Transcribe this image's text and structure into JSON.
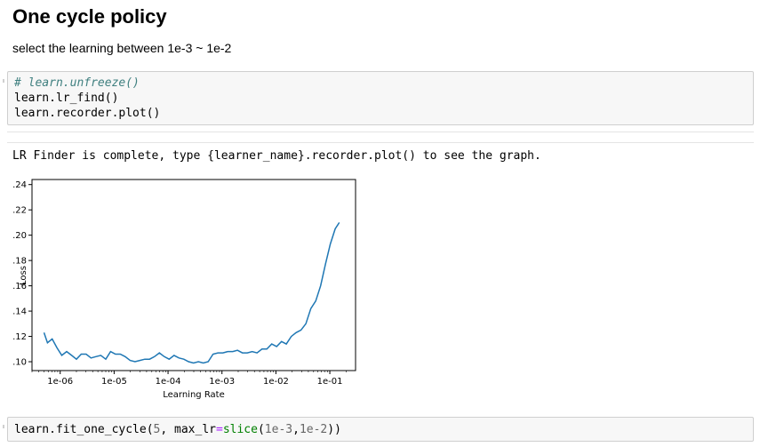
{
  "markdown": {
    "heading": "One cycle policy",
    "paragraph": "select the learning between 1e-3 ~ 1e-2"
  },
  "cell1": {
    "lines": [
      {
        "text": "# learn.unfreeze()",
        "kind": "comment"
      },
      {
        "text": "learn.lr_find()",
        "kind": "code"
      },
      {
        "text": "learn.recorder.plot()",
        "kind": "code"
      }
    ]
  },
  "output": {
    "text": "LR Finder is complete, type {learner_name}.recorder.plot() to see the graph."
  },
  "cell2": {
    "prefix": "learn.fit_one_cycle(",
    "arg1": "5",
    "sep": ", ",
    "kwarg": "max_lr",
    "eq": "=",
    "func": "slice",
    "open": "(",
    "a": "1e-3",
    "comma": ",",
    "b": "1e-2",
    "close": "))"
  },
  "chart_data": {
    "type": "line",
    "xlabel": "Learning Rate",
    "ylabel": "Loss",
    "xscale": "log",
    "xlim": [
      3e-07,
      0.3
    ],
    "ylim": [
      0.093,
      0.244
    ],
    "xticks": [
      {
        "value": 1e-06,
        "label": "1e-06"
      },
      {
        "value": 1e-05,
        "label": "1e-05"
      },
      {
        "value": 0.0001,
        "label": "1e-04"
      },
      {
        "value": 0.001,
        "label": "1e-03"
      },
      {
        "value": 0.01,
        "label": "1e-02"
      },
      {
        "value": 0.1,
        "label": "1e-01"
      }
    ],
    "yticks": [
      0.1,
      0.12,
      0.14,
      0.16,
      0.18,
      0.2,
      0.22,
      0.24
    ],
    "grid": false,
    "color": "#1f77b4",
    "series": [
      {
        "x": [
          5e-07,
          5.8e-07,
          7.1e-07,
          8.7e-07,
          1.07e-06,
          1.32e-06,
          1.63e-06,
          2e-06,
          2.46e-06,
          3.03e-06,
          3.73e-06,
          4.6e-06,
          5.66e-06,
          7e-06,
          8.6e-06,
          1.06e-05,
          1.3e-05,
          1.6e-05,
          1.98e-05,
          2.44e-05,
          3e-05,
          3.7e-05,
          4.55e-05,
          5.6e-05,
          6.9e-05,
          8.5e-05,
          0.000105,
          0.000129,
          0.000159,
          0.000196,
          0.000241,
          0.000297,
          0.000366,
          0.000451,
          0.000555,
          0.000684,
          0.000843,
          0.00104,
          0.00128,
          0.00158,
          0.00194,
          0.00239,
          0.00295,
          0.00363,
          0.00447,
          0.00551,
          0.00679,
          0.00837,
          0.0103,
          0.0127,
          0.0156,
          0.0193,
          0.0237,
          0.0292,
          0.036,
          0.0444,
          0.0547,
          0.0674,
          0.083,
          0.102,
          0.126,
          0.15
        ],
        "y": [
          0.123,
          0.115,
          0.118,
          0.111,
          0.105,
          0.108,
          0.105,
          0.102,
          0.106,
          0.106,
          0.103,
          0.104,
          0.105,
          0.102,
          0.108,
          0.106,
          0.106,
          0.104,
          0.101,
          0.1,
          0.101,
          0.102,
          0.102,
          0.104,
          0.107,
          0.104,
          0.102,
          0.105,
          0.103,
          0.102,
          0.1,
          0.099,
          0.1,
          0.099,
          0.1,
          0.106,
          0.107,
          0.107,
          0.108,
          0.108,
          0.109,
          0.107,
          0.107,
          0.108,
          0.107,
          0.11,
          0.11,
          0.114,
          0.112,
          0.116,
          0.114,
          0.12,
          0.123,
          0.125,
          0.13,
          0.142,
          0.148,
          0.16,
          0.177,
          0.193,
          0.205,
          0.21
        ]
      }
    ]
  }
}
